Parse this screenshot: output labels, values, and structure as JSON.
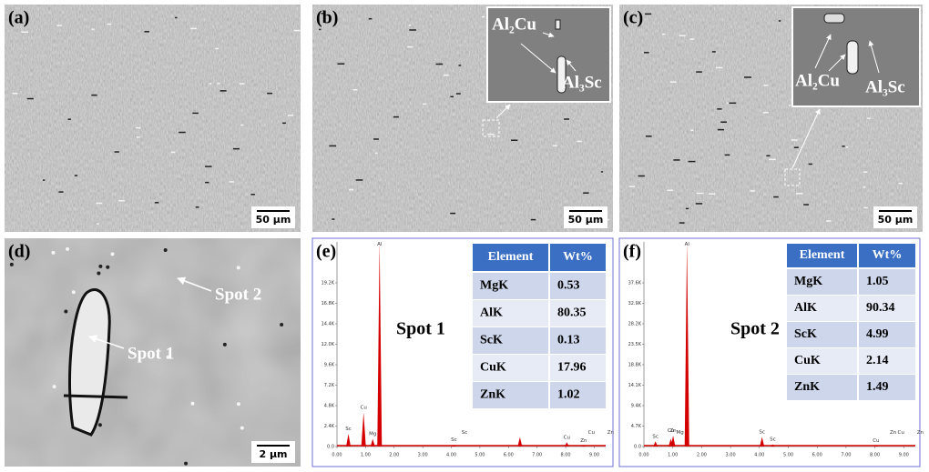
{
  "panels": [
    {
      "label": "(a)",
      "scale_bar": "50 μm"
    },
    {
      "label": "(b)",
      "scale_bar": "50 μm",
      "annotations": [
        "Al₂Cu",
        "Al₃Sc"
      ]
    },
    {
      "label": "(c)",
      "scale_bar": "50 μm",
      "annotations": [
        "Al₂Cu",
        "Al₃Sc"
      ]
    },
    {
      "label": "(d)",
      "scale_bar": "2 μm",
      "annotations": [
        "Spot 2",
        "Spot 1"
      ]
    }
  ],
  "chart_data": [
    {
      "type": "spectrum",
      "label": "(e)",
      "spot": "Spot 1",
      "color": "#d40000",
      "x": [
        0.4,
        0.93,
        1.25,
        1.49,
        4.09,
        6.4,
        8.04,
        8.63
      ],
      "values": [
        1500,
        4000,
        900,
        24000,
        200,
        1100,
        500,
        100
      ],
      "peak_labels": [
        {
          "text": "Al",
          "x": 1.49
        },
        {
          "text": "Sc",
          "x": 0.4
        },
        {
          "text": "Cu",
          "x": 0.93
        },
        {
          "text": "Mg",
          "x": 1.25
        },
        {
          "text": "Sc",
          "x": 4.09
        },
        {
          "text": "Sc",
          "x": 4.46
        },
        {
          "text": "Cu",
          "x": 8.04
        },
        {
          "text": "Zn",
          "x": 8.63
        },
        {
          "text": "Cu",
          "x": 8.9
        },
        {
          "text": "Zn",
          "x": 9.57
        }
      ],
      "xlim": [
        0,
        9.4
      ],
      "xticks": [
        {
          "value": 0,
          "label": "0.00"
        },
        {
          "value": 1,
          "label": "1.00"
        },
        {
          "value": 2,
          "label": "2.00"
        },
        {
          "value": 3,
          "label": "3.00"
        },
        {
          "value": 4,
          "label": "4.00"
        },
        {
          "value": 5,
          "label": "5.00"
        },
        {
          "value": 6,
          "label": "6.00"
        },
        {
          "value": 7,
          "label": "7.00"
        },
        {
          "value": 8,
          "label": "8.00"
        },
        {
          "value": 9,
          "label": "9.00"
        }
      ],
      "ylim": [
        0,
        24000
      ],
      "yticks": [
        {
          "value": 0,
          "label": "0.0"
        },
        {
          "value": 2400,
          "label": "2.4K"
        },
        {
          "value": 4800,
          "label": "4.8K"
        },
        {
          "value": 7200,
          "label": "7.2K"
        },
        {
          "value": 9600,
          "label": "9.6K"
        },
        {
          "value": 12000,
          "label": "12.0K"
        },
        {
          "value": 14400,
          "label": "14.4K"
        },
        {
          "value": 16800,
          "label": "16.8K"
        },
        {
          "value": 19200,
          "label": "19.2K"
        }
      ],
      "table": {
        "header": [
          "Element",
          "Wt%"
        ],
        "rows": [
          [
            "MgK",
            "0.53"
          ],
          [
            "AlK",
            "80.35"
          ],
          [
            "ScK",
            "0.13"
          ],
          [
            "CuK",
            "17.96"
          ],
          [
            "ZnK",
            "1.02"
          ]
        ]
      }
    },
    {
      "type": "spectrum",
      "label": "(f)",
      "spot": "Spot 2",
      "color": "#d40000",
      "x": [
        0.4,
        0.93,
        1.01,
        1.49,
        4.09,
        4.46,
        8.04
      ],
      "values": [
        1200,
        1800,
        2500,
        47000,
        2200,
        500,
        200
      ],
      "peak_labels": [
        {
          "text": "Al",
          "x": 1.49
        },
        {
          "text": "Sc",
          "x": 0.4
        },
        {
          "text": "Cu",
          "x": 0.93
        },
        {
          "text": "Zn",
          "x": 1.01
        },
        {
          "text": "Mg",
          "x": 1.25
        },
        {
          "text": "Sc",
          "x": 4.09
        },
        {
          "text": "Sc",
          "x": 4.46
        },
        {
          "text": "Cu",
          "x": 8.04
        },
        {
          "text": "Zn",
          "x": 8.63
        },
        {
          "text": "Cu",
          "x": 8.9
        },
        {
          "text": "Zn",
          "x": 9.57
        }
      ],
      "xlim": [
        0,
        9.4
      ],
      "xticks": [
        {
          "value": 0,
          "label": "0.00"
        },
        {
          "value": 1,
          "label": "1.00"
        },
        {
          "value": 2,
          "label": "2.00"
        },
        {
          "value": 3,
          "label": "3.00"
        },
        {
          "value": 4,
          "label": "4.00"
        },
        {
          "value": 5,
          "label": "5.00"
        },
        {
          "value": 6,
          "label": "6.00"
        },
        {
          "value": 7,
          "label": "7.00"
        },
        {
          "value": 8,
          "label": "8.00"
        },
        {
          "value": 9,
          "label": "9.00"
        }
      ],
      "ylim": [
        0,
        47000
      ],
      "yticks": [
        {
          "value": 0,
          "label": "0.0"
        },
        {
          "value": 4700,
          "label": "4.7K"
        },
        {
          "value": 9400,
          "label": "9.4K"
        },
        {
          "value": 14100,
          "label": "14.1K"
        },
        {
          "value": 18800,
          "label": "18.8K"
        },
        {
          "value": 23500,
          "label": "23.5K"
        },
        {
          "value": 28200,
          "label": "28.2K"
        },
        {
          "value": 32900,
          "label": "32.9K"
        },
        {
          "value": 37600,
          "label": "37.6K"
        }
      ],
      "table": {
        "header": [
          "Element",
          "Wt%"
        ],
        "rows": [
          [
            "MgK",
            "1.05"
          ],
          [
            "AlK",
            "90.34"
          ],
          [
            "ScK",
            "4.99"
          ],
          [
            "CuK",
            "2.14"
          ],
          [
            "ZnK",
            "1.49"
          ]
        ]
      }
    }
  ]
}
